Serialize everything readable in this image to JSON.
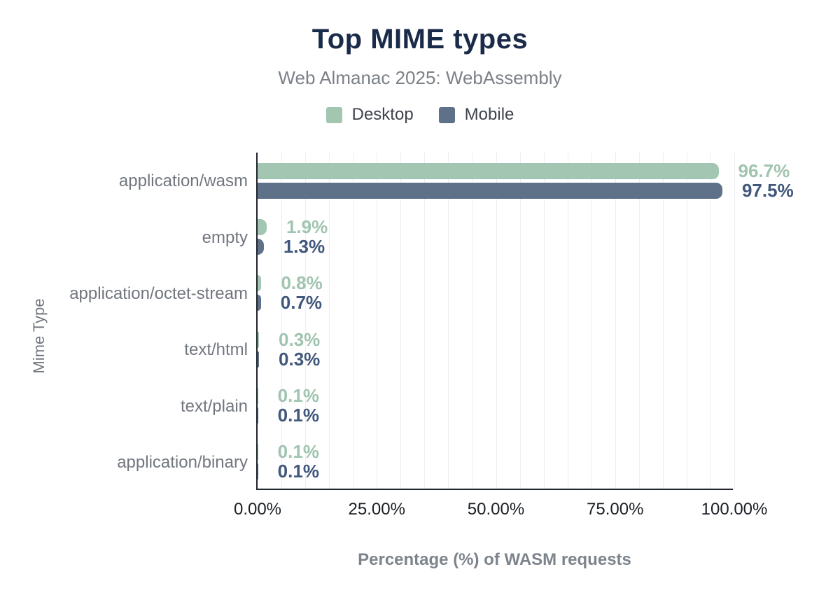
{
  "figure": {
    "title": "Top MIME types",
    "subtitle": "Web Almanac 2025: WebAssembly"
  },
  "theme": {
    "title_color": "#1a2b49",
    "subtitle_color": "#7c8188",
    "axis_line_color": "#20252c",
    "grid_color": "#ededf2",
    "category_text_color": "#71767e",
    "tick_text_color": "#1b1f24"
  },
  "legend": {
    "position": "top",
    "items": [
      {
        "label": "Desktop",
        "color": "#a3c6b2"
      },
      {
        "label": "Mobile",
        "color": "#5f7189"
      }
    ]
  },
  "chart_data": {
    "type": "bar",
    "orientation": "horizontal",
    "title": "Top MIME types",
    "subtitle": "Web Almanac 2025: WebAssembly",
    "categories": [
      "application/wasm",
      "empty",
      "application/octet-stream",
      "text/html",
      "text/plain",
      "application/binary"
    ],
    "series": [
      {
        "name": "Desktop",
        "color": "#a3c6b2",
        "label_color": "#a0c4b0",
        "values": [
          96.7,
          1.9,
          0.8,
          0.3,
          0.1,
          0.1
        ],
        "labels": [
          "96.7%",
          "1.9%",
          "0.8%",
          "0.3%",
          "0.1%",
          "0.1%"
        ]
      },
      {
        "name": "Mobile",
        "color": "#5f7189",
        "label_color": "#41577b",
        "values": [
          97.5,
          1.3,
          0.7,
          0.3,
          0.1,
          0.1
        ],
        "labels": [
          "97.5%",
          "1.3%",
          "0.7%",
          "0.3%",
          "0.1%",
          "0.1%"
        ]
      }
    ],
    "xlabel": "Percentage (%) of WASM requests",
    "ylabel": "Mime Type",
    "x_ticks": [
      {
        "label": "0.00%",
        "value": 0
      },
      {
        "label": "25.00%",
        "value": 25
      },
      {
        "label": "50.00%",
        "value": 50
      },
      {
        "label": "75.00%",
        "value": 75
      },
      {
        "label": "100.00%",
        "value": 100
      }
    ],
    "xlim": [
      0,
      100
    ],
    "grid": {
      "show": true,
      "step_percent": 5
    },
    "legend_position": "top"
  }
}
